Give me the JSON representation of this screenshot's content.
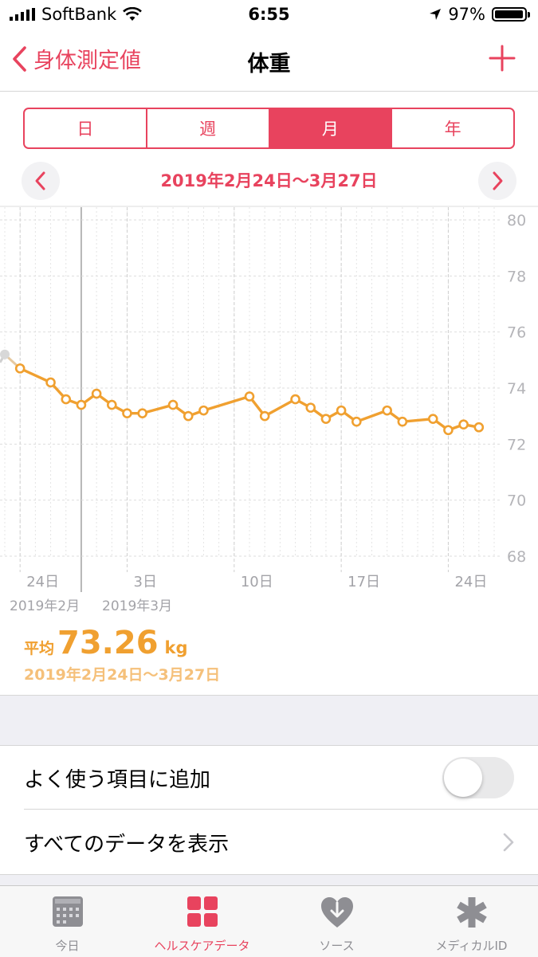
{
  "status": {
    "carrier": "SoftBank",
    "time": "6:55",
    "battery": "97%"
  },
  "nav": {
    "back_label": "身体測定値",
    "title": "体重"
  },
  "segments": [
    {
      "label": "日",
      "active": false
    },
    {
      "label": "週",
      "active": false
    },
    {
      "label": "月",
      "active": true
    },
    {
      "label": "年",
      "active": false
    }
  ],
  "range": {
    "label": "2019年2月24日〜3月27日"
  },
  "chart_data": {
    "type": "line",
    "series": [
      {
        "values": [
          {
            "x": "2019-02-23",
            "y": 75.2
          },
          {
            "x": "2019-02-24",
            "y": 74.7
          },
          {
            "x": "2019-02-26",
            "y": 74.2
          },
          {
            "x": "2019-02-27",
            "y": 73.6
          },
          {
            "x": "2019-02-28",
            "y": 73.4
          },
          {
            "x": "2019-03-01",
            "y": 73.8
          },
          {
            "x": "2019-03-02",
            "y": 73.4
          },
          {
            "x": "2019-03-03",
            "y": 73.1
          },
          {
            "x": "2019-03-04",
            "y": 73.1
          },
          {
            "x": "2019-03-06",
            "y": 73.4
          },
          {
            "x": "2019-03-07",
            "y": 73.0
          },
          {
            "x": "2019-03-08",
            "y": 73.2
          },
          {
            "x": "2019-03-11",
            "y": 73.7
          },
          {
            "x": "2019-03-12",
            "y": 73.0
          },
          {
            "x": "2019-03-14",
            "y": 73.6
          },
          {
            "x": "2019-03-15",
            "y": 73.3
          },
          {
            "x": "2019-03-16",
            "y": 72.9
          },
          {
            "x": "2019-03-17",
            "y": 73.2
          },
          {
            "x": "2019-03-18",
            "y": 72.8
          },
          {
            "x": "2019-03-20",
            "y": 73.2
          },
          {
            "x": "2019-03-21",
            "y": 72.8
          },
          {
            "x": "2019-03-23",
            "y": 72.9
          },
          {
            "x": "2019-03-24",
            "y": 72.5
          },
          {
            "x": "2019-03-25",
            "y": 72.7
          },
          {
            "x": "2019-03-26",
            "y": 72.6
          }
        ]
      }
    ],
    "y_ticks": [
      "68",
      "70",
      "72",
      "74",
      "76",
      "78",
      "80"
    ],
    "x_ticks": [
      {
        "label": "24日",
        "x": "2019-02-24"
      },
      {
        "label": "3日",
        "x": "2019-03-03"
      },
      {
        "label": "10日",
        "x": "2019-03-10"
      },
      {
        "label": "17日",
        "x": "2019-03-17"
      },
      {
        "label": "24日",
        "x": "2019-03-24"
      }
    ],
    "ylim": [
      68,
      80
    ],
    "xlim": [
      "2019-02-23",
      "2019-03-27"
    ],
    "line_color": "#f0a030",
    "grid": true
  },
  "months": {
    "feb": "2019年2月",
    "mar": "2019年3月"
  },
  "average": {
    "label": "平均",
    "value": "73.26",
    "unit": "kg",
    "range": "2019年2月24日〜3月27日"
  },
  "rows": {
    "favorite": "よく使う項目に追加",
    "all_data": "すべてのデータを表示"
  },
  "tabs": [
    {
      "label": "今日",
      "icon": "calendar-icon",
      "active": false
    },
    {
      "label": "ヘルスケアデータ",
      "icon": "grid-icon",
      "active": true
    },
    {
      "label": "ソース",
      "icon": "heart-download-icon",
      "active": false
    },
    {
      "label": "メディカルID",
      "icon": "asterisk-icon",
      "active": false
    }
  ],
  "colors": {
    "accent": "#e8435e",
    "chart": "#f0a030"
  }
}
